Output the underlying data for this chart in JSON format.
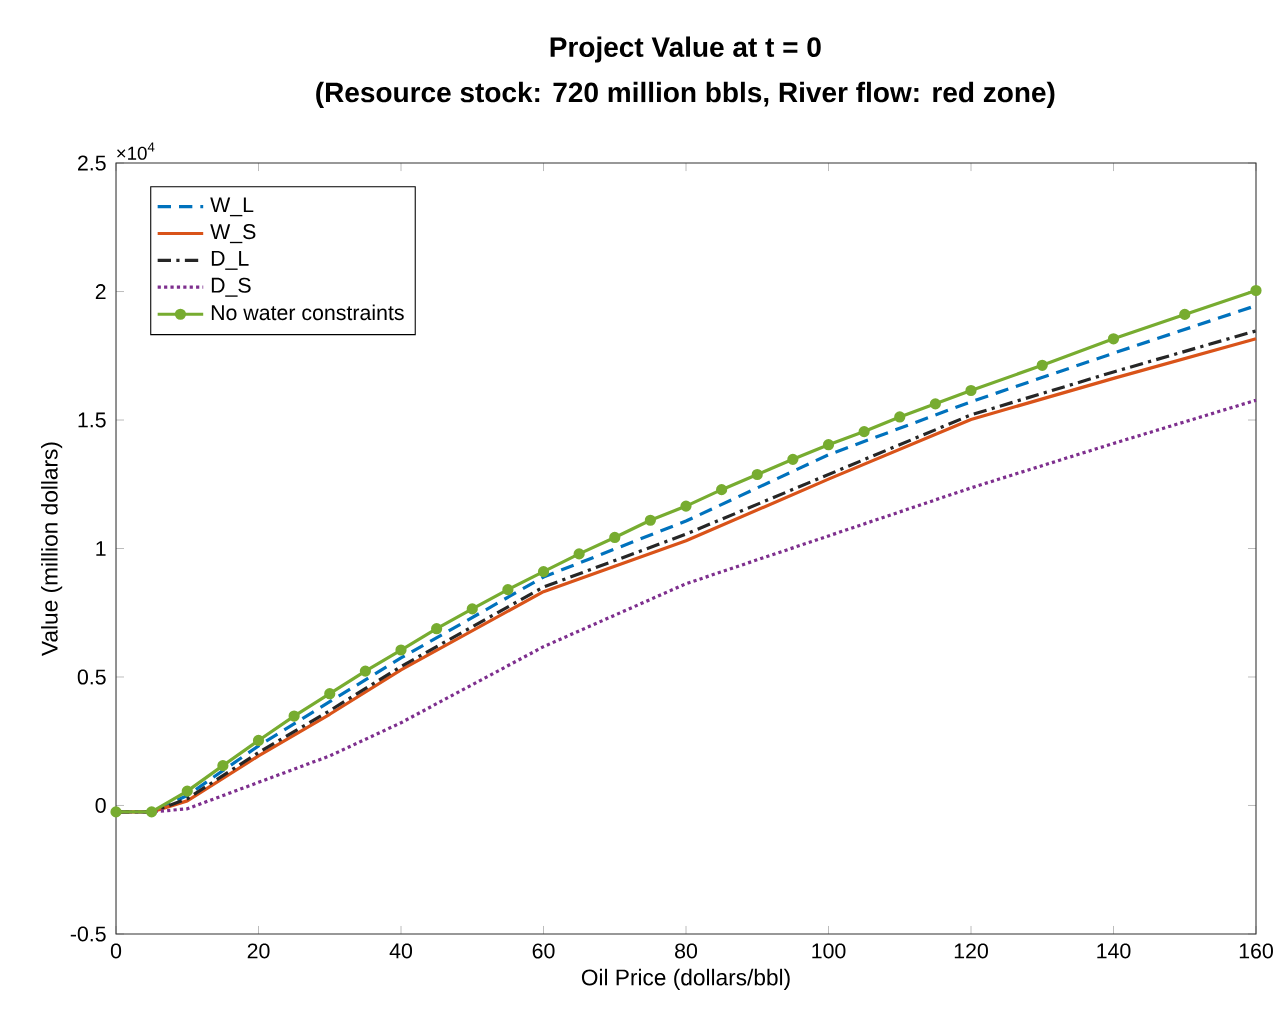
{
  "chart_data": {
    "type": "line",
    "title": "Project Value at t = 0",
    "subtitle": "(Resource stock: 720 million bbls, River flow: red zone)",
    "xlabel": "Oil Price (dollars/bbl)",
    "ylabel": "Value (million dollars)",
    "annotations": [
      "×10$^{4}$"
    ],
    "xlim": [
      0,
      160
    ],
    "xticks": [
      0,
      20,
      40,
      60,
      80,
      100,
      120,
      140,
      160
    ],
    "ylim": [
      -0.5,
      2.5
    ],
    "yticks": [
      -0.5,
      0,
      0.5,
      1,
      1.5,
      2,
      2.5
    ],
    "grid": false,
    "legend": "top left",
    "series": [
      {
        "name": "W_L",
        "color": "#0072bd",
        "line_style": "dashed",
        "marker": "none",
        "x": [
          0,
          5,
          10,
          20,
          30,
          40,
          60,
          80,
          100,
          120,
          140,
          160
        ],
        "values": [
          -0.025,
          -0.025,
          0.039,
          0.232,
          0.404,
          0.574,
          0.889,
          1.107,
          1.365,
          1.571,
          1.76,
          1.945
        ]
      },
      {
        "name": "W_S",
        "color": "#d95319",
        "line_style": "solid",
        "marker": "none",
        "x": [
          0,
          5,
          10,
          20,
          30,
          40,
          60,
          80,
          100,
          120,
          140,
          160
        ],
        "values": [
          -0.025,
          -0.025,
          0.018,
          0.193,
          0.355,
          0.528,
          0.832,
          1.03,
          1.27,
          1.502,
          1.662,
          1.816
        ]
      },
      {
        "name": "D_L",
        "color": "#262626",
        "line_style": "dashdot",
        "marker": "none",
        "x": [
          0,
          5,
          10,
          20,
          30,
          40,
          60,
          80,
          100,
          120,
          140,
          160
        ],
        "values": [
          -0.025,
          -0.025,
          0.026,
          0.206,
          0.369,
          0.541,
          0.85,
          1.056,
          1.288,
          1.52,
          1.687,
          1.847
        ]
      },
      {
        "name": "D_S",
        "color": "#7e2f8e",
        "line_style": "dotted",
        "marker": "none",
        "x": [
          0,
          5,
          10,
          20,
          30,
          40,
          60,
          80,
          100,
          120,
          140,
          160
        ],
        "values": [
          -0.025,
          -0.025,
          -0.013,
          0.09,
          0.193,
          0.322,
          0.618,
          0.863,
          1.049,
          1.236,
          1.409,
          1.577
        ]
      },
      {
        "name": "No water constraints",
        "color": "#77ac30",
        "line_style": "solid",
        "marker": "circle",
        "x": [
          0,
          5,
          10,
          15,
          20,
          25,
          30,
          35,
          40,
          45,
          50,
          55,
          60,
          65,
          70,
          75,
          80,
          85,
          90,
          95,
          100,
          105,
          110,
          115,
          120,
          130,
          140,
          150,
          160
        ],
        "values": [
          -0.025,
          -0.025,
          0.056,
          0.155,
          0.253,
          0.348,
          0.435,
          0.523,
          0.605,
          0.688,
          0.765,
          0.84,
          0.91,
          0.979,
          1.043,
          1.11,
          1.165,
          1.229,
          1.288,
          1.347,
          1.404,
          1.455,
          1.512,
          1.563,
          1.615,
          1.713,
          1.816,
          1.911,
          2.004
        ]
      }
    ]
  }
}
